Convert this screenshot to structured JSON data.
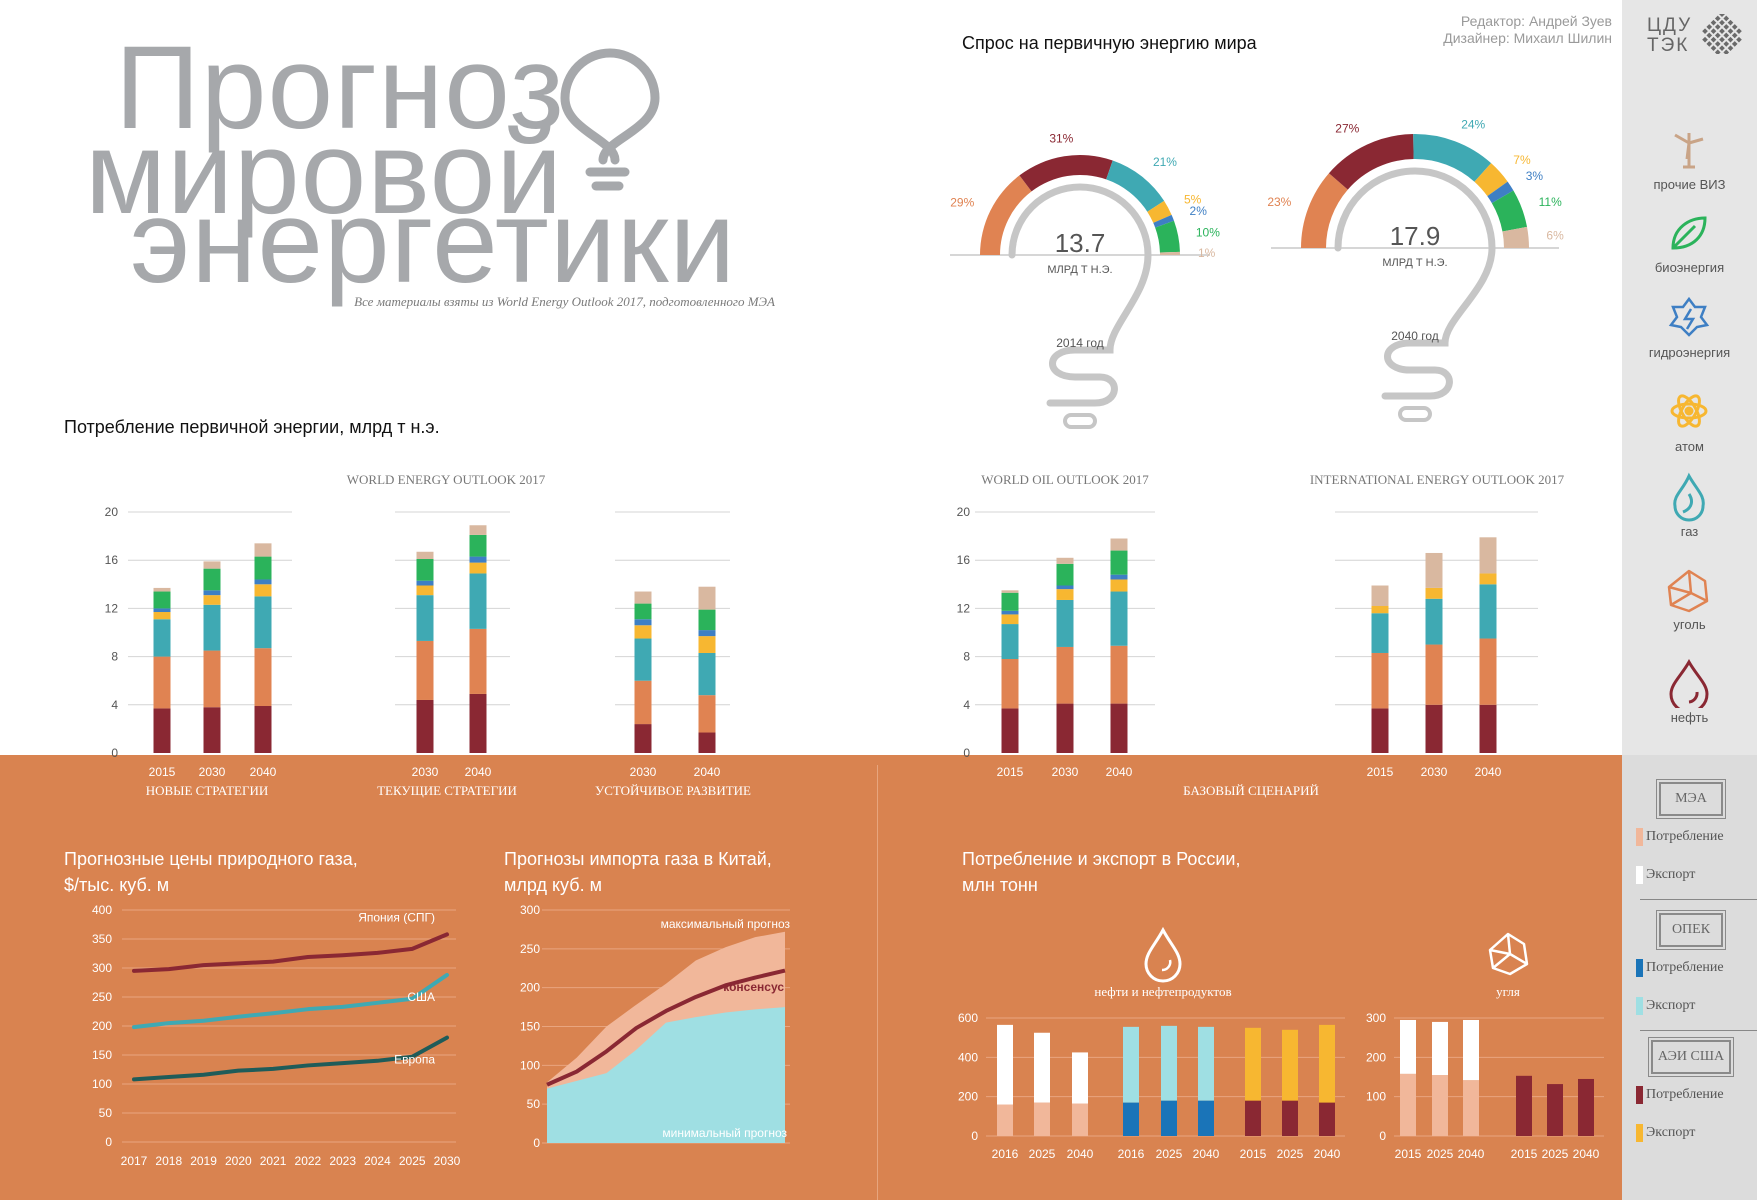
{
  "header": {
    "title_lines": [
      "Прогноз",
      "мировой",
      "энергетики"
    ],
    "source_note": "Все материалы взяты из World Energy Outlook 2017, подготовленного МЭА",
    "editor": "Редактор: Андрей Зуев",
    "designer": "Дизайнер: Михаил Шилин",
    "logo_line1": "ЦДУ",
    "logo_line2": "ТЭК"
  },
  "colors": {
    "oil": "#8a2833",
    "coal": "#e08352",
    "gas": "#3fa9b3",
    "nuclear": "#f7b731",
    "hydro": "#3e7fc4",
    "bio": "#2bb35b",
    "other": "#d9b8a0",
    "orange_bg": "#d98350",
    "axis_grey": "#9a9a9a",
    "opec_dark": "#1a74b8",
    "opec_light": "#9fdfe3",
    "mea_light": "#f1b79a"
  },
  "sidebar": {
    "energy_types": [
      {
        "icon": "wind-turbine-icon",
        "label": "прочие ВИЗ"
      },
      {
        "icon": "leaf-icon",
        "label": "биоэнергия"
      },
      {
        "icon": "hydro-icon",
        "label": "гидроэнергия"
      },
      {
        "icon": "atom-icon",
        "label": "атом"
      },
      {
        "icon": "gas-flame-icon",
        "label": "газ"
      },
      {
        "icon": "coal-icon",
        "label": "уголь"
      },
      {
        "icon": "oil-drop-icon",
        "label": "нефть"
      }
    ],
    "legend_groups": [
      {
        "name": "МЭА",
        "consumption": "Потребление",
        "export": "Экспорт"
      },
      {
        "name": "ОПЕК",
        "consumption": "Потребление",
        "export": "Экспорт"
      },
      {
        "name": "АЭИ США",
        "consumption": "Потребление",
        "export": "Экспорт"
      }
    ]
  },
  "demand": {
    "title": "Спрос на первичную энергию мира",
    "gauges": [
      {
        "value": "13.7",
        "unit": "МЛРД Т Н.Э.",
        "year": "2014 год",
        "segments": [
          29,
          31,
          21,
          5,
          2,
          10,
          1
        ],
        "labels": [
          "29%",
          "31%",
          "21%",
          "5%",
          "2%",
          "10%",
          "1%"
        ]
      },
      {
        "value": "17.9",
        "unit": "МЛРД Т Н.Э.",
        "year": "2040 год",
        "segments": [
          23,
          27,
          24,
          7,
          3,
          11,
          6
        ],
        "labels": [
          "23%",
          "27%",
          "24%",
          "7%",
          "3%",
          "11%",
          "6%"
        ]
      }
    ]
  },
  "consumption": {
    "title": "Потребление первичной энергии, млрд т н.э.",
    "chart_data": {
      "type": "bar",
      "ylim": [
        0,
        20
      ],
      "yticks": [
        "0",
        "4",
        "8",
        "12",
        "16",
        "20"
      ],
      "series_order": [
        "oil",
        "coal",
        "gas",
        "nuclear",
        "hydro",
        "bio",
        "other"
      ],
      "groups": [
        {
          "source": "WORLD ENERGY OUTLOOK 2017",
          "scenario": "НОВЫЕ СТРАТЕГИИ",
          "bars": [
            {
              "year": "2015",
              "values": [
                3.7,
                4.3,
                3.1,
                0.6,
                0.3,
                1.4,
                0.3
              ]
            },
            {
              "year": "2030",
              "values": [
                3.8,
                4.7,
                3.8,
                0.8,
                0.4,
                1.8,
                0.6
              ]
            },
            {
              "year": "2040",
              "values": [
                3.9,
                4.8,
                4.3,
                1.0,
                0.4,
                1.9,
                1.1
              ]
            }
          ]
        },
        {
          "source": "WORLD ENERGY OUTLOOK 2017",
          "scenario": "ТЕКУЩИЕ СТРАТЕГИИ",
          "bars": [
            {
              "year": "2030",
              "values": [
                4.4,
                4.9,
                3.8,
                0.8,
                0.4,
                1.8,
                0.6
              ]
            },
            {
              "year": "2040",
              "values": [
                4.9,
                5.4,
                4.6,
                0.9,
                0.5,
                1.8,
                0.8
              ]
            }
          ]
        },
        {
          "source": "WORLD ENERGY OUTLOOK 2017",
          "scenario": "УСТОЙЧИВОЕ РАЗВИТИЕ",
          "bars": [
            {
              "year": "2030",
              "values": [
                2.4,
                3.6,
                3.5,
                1.1,
                0.5,
                1.3,
                1.0
              ]
            },
            {
              "year": "2040",
              "values": [
                1.7,
                3.1,
                3.5,
                1.4,
                0.5,
                1.7,
                1.9
              ]
            }
          ]
        },
        {
          "source": "WORLD OIL OUTLOOK 2017",
          "scenario": "БАЗОВЫЙ СЦЕНАРИЙ",
          "bars": [
            {
              "year": "2015",
              "values": [
                3.7,
                4.1,
                2.9,
                0.8,
                0.3,
                1.5,
                0.2
              ]
            },
            {
              "year": "2030",
              "values": [
                4.1,
                4.7,
                3.9,
                0.9,
                0.3,
                1.8,
                0.5
              ]
            },
            {
              "year": "2040",
              "values": [
                4.1,
                4.8,
                4.5,
                1.0,
                0.4,
                2.0,
                1.0
              ]
            }
          ]
        },
        {
          "source": "INTERNATIONAL ENERGY OUTLOOK 2017",
          "scenario": "БАЗОВЫЙ СЦЕНАРИЙ",
          "bars": [
            {
              "year": "2015",
              "values": [
                3.7,
                4.6,
                3.3,
                0.6,
                0,
                0,
                1.7
              ]
            },
            {
              "year": "2030",
              "values": [
                4.0,
                5.0,
                3.8,
                0.9,
                0,
                0,
                2.9
              ]
            },
            {
              "year": "2040",
              "values": [
                4.0,
                5.5,
                4.5,
                0.9,
                0,
                0,
                3.0
              ]
            }
          ]
        }
      ]
    }
  },
  "gas_prices": {
    "title_lines": [
      "Прогнозные цены природного газа,",
      "$/тыс. куб. м"
    ],
    "chart_data": {
      "type": "line",
      "x": [
        "2017",
        "2018",
        "2019",
        "2020",
        "2021",
        "2022",
        "2023",
        "2024",
        "2025",
        "2030"
      ],
      "ylim": [
        0,
        400
      ],
      "yticks": [
        "0",
        "50",
        "100",
        "150",
        "200",
        "250",
        "300",
        "350",
        "400"
      ],
      "series": [
        {
          "name": "Япония (СПГ)",
          "color": "#8a2833",
          "values": [
            295,
            298,
            305,
            308,
            311,
            319,
            322,
            326,
            333,
            358
          ]
        },
        {
          "name": "США",
          "color": "#3fa9b3",
          "values": [
            198,
            205,
            209,
            216,
            222,
            229,
            233,
            240,
            247,
            288
          ]
        },
        {
          "name": "Европа",
          "color": "#1f5c59",
          "values": [
            108,
            112,
            116,
            123,
            126,
            132,
            136,
            140,
            147,
            180
          ]
        }
      ]
    }
  },
  "china_imports": {
    "title_lines": [
      "Прогнозы импорта газа в Китай,",
      "млрд куб. м"
    ],
    "chart_data": {
      "type": "area",
      "ylim": [
        0,
        300
      ],
      "yticks": [
        "0",
        "50",
        "100",
        "150",
        "200",
        "250",
        "300"
      ],
      "points": 9,
      "max": [
        78,
        110,
        150,
        178,
        205,
        235,
        252,
        265,
        272
      ],
      "consensus": [
        75,
        92,
        118,
        148,
        170,
        188,
        203,
        213,
        222
      ],
      "min": [
        70,
        80,
        90,
        120,
        155,
        162,
        168,
        172,
        175
      ],
      "label_max": "максимальный прогноз",
      "label_consensus": "консенсус",
      "label_min": "минимальный прогноз"
    }
  },
  "russia": {
    "title_lines": [
      "Потребление и экспорт в России,",
      "млн тонн"
    ],
    "oil_label": "нефти и нефтепродуктов",
    "coal_label": "угля",
    "chart_data": {
      "type": "bar",
      "oil": {
        "ylim": [
          0,
          600
        ],
        "yticks": [
          "0",
          "200",
          "400",
          "600"
        ],
        "groups": [
          {
            "source": "МЭА",
            "years": [
              "2016",
              "2025",
              "2040"
            ],
            "consumption": [
              160,
              170,
              165
            ],
            "export": [
              405,
              355,
              260
            ]
          },
          {
            "source": "ОПЕК",
            "years": [
              "2016",
              "2025",
              "2040"
            ],
            "consumption": [
              170,
              180,
              180
            ],
            "export": [
              385,
              380,
              375
            ]
          },
          {
            "source": "АЭИ США",
            "years": [
              "2015",
              "2025",
              "2040"
            ],
            "consumption": [
              180,
              180,
              170
            ],
            "export": [
              370,
              360,
              395
            ]
          }
        ]
      },
      "coal": {
        "ylim": [
          0,
          300
        ],
        "yticks": [
          "0",
          "100",
          "200",
          "300"
        ],
        "groups": [
          {
            "source": "МЭА",
            "years": [
              "2015",
              "2025",
              "2040"
            ],
            "consumption": [
              158,
              155,
              142
            ],
            "export": [
              137,
              135,
              153
            ]
          },
          {
            "source": "АЭИ США",
            "years": [
              "2015",
              "2025",
              "2040"
            ],
            "consumption": [
              153,
              132,
              145
            ],
            "export": [
              0,
              0,
              0
            ]
          }
        ]
      }
    }
  }
}
